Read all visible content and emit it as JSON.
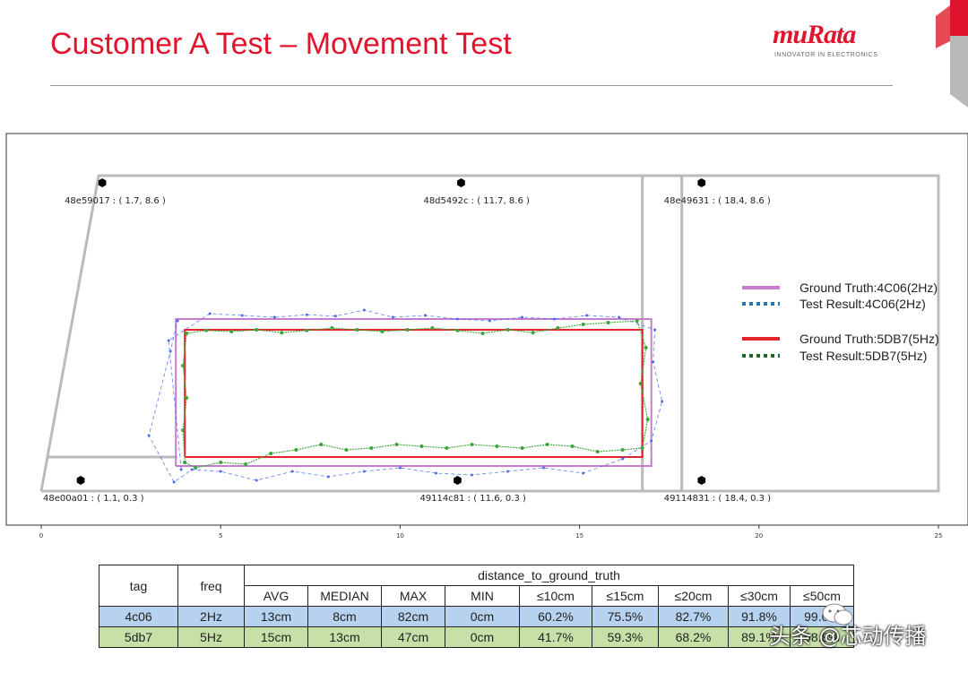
{
  "slide": {
    "title": "Customer A Test – Movement Test"
  },
  "logo": {
    "brand": "muRata",
    "tagline": "INNOVATOR IN ELECTRONICS"
  },
  "chart_data": {
    "type": "line",
    "xlim": [
      0,
      25
    ],
    "ylim": [
      0,
      10
    ],
    "xticks": [
      0,
      5,
      10,
      15,
      20,
      25
    ],
    "grid": false,
    "legend_position": "right",
    "legend": [
      {
        "label": "Ground Truth:4C06(2Hz)",
        "color": "#c77ccf",
        "style": "solid"
      },
      {
        "label": "Test Result:4C06(2Hz)",
        "color": "#1f77b4",
        "style": "dotted"
      },
      {
        "label": "Ground Truth:5DB7(5Hz)",
        "color": "#e3242b",
        "style": "solid"
      },
      {
        "label": "Test Result:5DB7(5Hz)",
        "color": "#1a6b2a",
        "style": "dotted"
      }
    ],
    "anchors": [
      {
        "label": "48e59017 : ( 1.7, 8.6 )",
        "x": 1.7,
        "y": 8.6
      },
      {
        "label": "48d5492c : ( 11.7, 8.6 )",
        "x": 11.7,
        "y": 8.6
      },
      {
        "label": "48e49631 : ( 18.4, 8.6 )",
        "x": 18.4,
        "y": 8.6
      },
      {
        "label": "48e00a01 : ( 1.1, 0.3 )",
        "x": 1.1,
        "y": 0.3
      },
      {
        "label": "49114c81 : ( 11.6, 0.3 )",
        "x": 11.6,
        "y": 0.3
      },
      {
        "label": "49114831 : ( 18.4, 0.3 )",
        "x": 18.4,
        "y": 0.3
      }
    ],
    "room_outline": [
      [
        0,
        0
      ],
      [
        1.6,
        8.8
      ],
      [
        25,
        8.8
      ],
      [
        25,
        0
      ],
      [
        0,
        0
      ]
    ],
    "room_lines": [
      [
        [
          0.15,
          0.95
        ],
        [
          3.8,
          0.95
        ]
      ],
      [
        [
          16.75,
          0
        ],
        [
          16.75,
          8.8
        ]
      ],
      [
        [
          17.85,
          0
        ],
        [
          17.85,
          8.8
        ]
      ]
    ],
    "series": [
      {
        "name": "Ground Truth:4C06(2Hz)",
        "color": "#c77ccf",
        "points": [
          [
            3.75,
            0.7
          ],
          [
            3.75,
            4.8
          ],
          [
            17.0,
            4.8
          ],
          [
            17.0,
            0.7
          ],
          [
            3.75,
            0.7
          ]
        ]
      },
      {
        "name": "Ground Truth:5DB7(5Hz)",
        "color": "#e3242b",
        "points": [
          [
            4.0,
            0.95
          ],
          [
            4.0,
            4.5
          ],
          [
            16.75,
            4.5
          ],
          [
            16.75,
            0.95
          ],
          [
            4.0,
            0.95
          ]
        ]
      },
      {
        "name": "Test Result:4C06(2Hz)",
        "color": "#4a6cf0",
        "points": [
          [
            3.9,
            0.6
          ],
          [
            3.55,
            4.2
          ],
          [
            4.7,
            4.95
          ],
          [
            5.6,
            4.9
          ],
          [
            6.5,
            4.85
          ],
          [
            7.4,
            4.92
          ],
          [
            8.2,
            4.88
          ],
          [
            9.0,
            5.05
          ],
          [
            9.8,
            4.85
          ],
          [
            10.7,
            4.9
          ],
          [
            11.6,
            4.8
          ],
          [
            12.5,
            4.75
          ],
          [
            13.4,
            4.85
          ],
          [
            14.3,
            4.8
          ],
          [
            15.2,
            4.9
          ],
          [
            16.1,
            4.85
          ],
          [
            17.1,
            4.5
          ],
          [
            17.05,
            3.6
          ],
          [
            17.3,
            2.5
          ],
          [
            17.0,
            1.4
          ],
          [
            16.2,
            0.9
          ],
          [
            15.1,
            0.5
          ],
          [
            14.0,
            0.65
          ],
          [
            13.0,
            0.55
          ],
          [
            12.0,
            0.45
          ],
          [
            11.0,
            0.5
          ],
          [
            10.0,
            0.65
          ],
          [
            9.0,
            0.55
          ],
          [
            8.0,
            0.4
          ],
          [
            7.0,
            0.55
          ],
          [
            6.0,
            0.3
          ],
          [
            5.0,
            0.55
          ],
          [
            4.2,
            0.6
          ],
          [
            3.7,
            0.25
          ],
          [
            3.0,
            1.55
          ],
          [
            3.6,
            3.9
          ],
          [
            3.8,
            4.75
          ]
        ]
      },
      {
        "name": "Test Result:5DB7(5Hz)",
        "color": "#3ca63c",
        "points": [
          [
            4.0,
            0.8
          ],
          [
            3.95,
            1.7
          ],
          [
            4.05,
            2.6
          ],
          [
            3.95,
            3.5
          ],
          [
            4.05,
            4.4
          ],
          [
            4.6,
            4.48
          ],
          [
            5.3,
            4.45
          ],
          [
            6.0,
            4.5
          ],
          [
            6.7,
            4.42
          ],
          [
            7.4,
            4.48
          ],
          [
            8.1,
            4.55
          ],
          [
            8.8,
            4.5
          ],
          [
            9.5,
            4.45
          ],
          [
            10.2,
            4.5
          ],
          [
            10.9,
            4.55
          ],
          [
            11.6,
            4.48
          ],
          [
            12.3,
            4.4
          ],
          [
            13.0,
            4.5
          ],
          [
            13.7,
            4.42
          ],
          [
            14.4,
            4.55
          ],
          [
            15.1,
            4.65
          ],
          [
            15.8,
            4.7
          ],
          [
            16.6,
            4.75
          ],
          [
            16.85,
            4.0
          ],
          [
            16.7,
            3.0
          ],
          [
            16.9,
            2.0
          ],
          [
            16.75,
            1.2
          ],
          [
            16.2,
            1.15
          ],
          [
            15.5,
            1.1
          ],
          [
            14.8,
            1.25
          ],
          [
            14.1,
            1.3
          ],
          [
            13.4,
            1.2
          ],
          [
            12.7,
            1.25
          ],
          [
            12.0,
            1.3
          ],
          [
            11.3,
            1.2
          ],
          [
            10.6,
            1.25
          ],
          [
            9.9,
            1.3
          ],
          [
            9.2,
            1.2
          ],
          [
            8.5,
            1.15
          ],
          [
            7.8,
            1.3
          ],
          [
            7.1,
            1.15
          ],
          [
            6.4,
            1.05
          ],
          [
            5.7,
            0.75
          ],
          [
            5.0,
            0.8
          ],
          [
            4.3,
            0.65
          ],
          [
            4.0,
            0.8
          ]
        ]
      }
    ]
  },
  "table": {
    "header_tag": "tag",
    "header_freq": "freq",
    "header_group": "distance_to_ground_truth",
    "columns": [
      "AVG",
      "MEDIAN",
      "MAX",
      "MIN",
      "≤10cm",
      "≤15cm",
      "≤20cm",
      "≤30cm",
      "≤50cm"
    ],
    "rows": [
      {
        "tag": "4c06",
        "freq": "2Hz",
        "values": [
          "13cm",
          "8cm",
          "82cm",
          "0cm",
          "60.2%",
          "75.5%",
          "82.7%",
          "91.8%",
          "99.0%"
        ]
      },
      {
        "tag": "5db7",
        "freq": "5Hz",
        "values": [
          "15cm",
          "13cm",
          "47cm",
          "0cm",
          "41.7%",
          "59.3%",
          "68.2%",
          "89.1%",
          "98.8%"
        ]
      }
    ]
  },
  "watermark": {
    "text": "头条 @芯动传播"
  }
}
